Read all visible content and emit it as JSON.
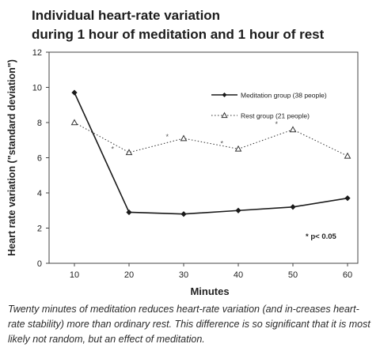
{
  "title_lines": [
    "Individual heart-rate variation",
    "during 1 hour of meditation and 1 hour of rest"
  ],
  "caption": "Twenty minutes of meditation reduces heart-rate variation (and in-creases heart-rate stability) more than ordinary rest. This difference is so significant that it is most likely not random, but an effect of meditation.",
  "chart_data": {
    "type": "line",
    "title": "Individual heart-rate variation during 1 hour of meditation and 1 hour of rest",
    "xlabel": "Minutes",
    "ylabel": "Heart rate variation (\"standard deviation\")",
    "x": [
      10,
      20,
      30,
      40,
      50,
      60
    ],
    "x_ticks": [
      "10",
      "20",
      "30",
      "40",
      "50",
      "60"
    ],
    "y_ticks": [
      "0",
      "2",
      "4",
      "6",
      "8",
      "10",
      "12"
    ],
    "ylim": [
      0,
      12
    ],
    "grid": false,
    "legend_position": "upper-right inside",
    "series": [
      {
        "name": "Meditation group (38 people)",
        "values": [
          9.7,
          2.9,
          2.8,
          3.0,
          3.2,
          3.7
        ],
        "line_style": "solid",
        "marker": "filled-diamond",
        "color": "#1a1a1a"
      },
      {
        "name": "Rest group (21 people)",
        "values": [
          8.0,
          6.3,
          7.1,
          6.5,
          7.6,
          6.1
        ],
        "line_style": "dotted",
        "marker": "open-triangle",
        "color": "#333333"
      }
    ],
    "annotations": [
      {
        "text": "* p< 0.05"
      }
    ],
    "significance_markers": {
      "symbol": "*",
      "x": [
        17,
        27,
        37,
        47
      ],
      "y": [
        6.5,
        7.2,
        6.8,
        7.9
      ]
    }
  }
}
